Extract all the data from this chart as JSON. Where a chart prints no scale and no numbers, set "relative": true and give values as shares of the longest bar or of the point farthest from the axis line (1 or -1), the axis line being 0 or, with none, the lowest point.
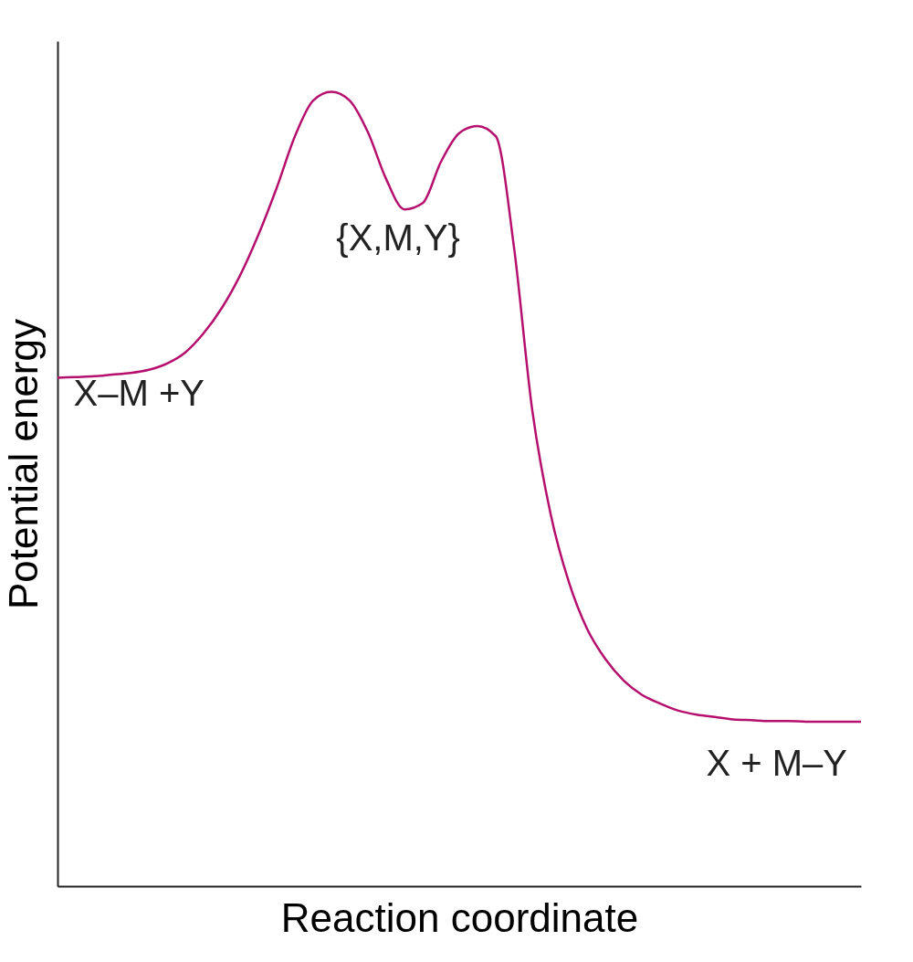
{
  "chart_data": {
    "type": "line",
    "relative": true,
    "xlabel": "Reaction coordinate",
    "ylabel": "Potential energy",
    "categories": [
      null,
      null,
      null,
      null,
      null,
      null,
      null,
      null,
      null,
      null,
      null,
      null,
      null,
      null,
      null,
      null,
      null,
      null,
      null,
      null,
      null,
      null,
      null,
      null,
      null,
      null,
      null,
      null,
      null,
      null,
      null,
      null,
      null,
      null,
      null,
      null,
      null,
      null,
      null,
      null,
      null,
      null,
      null,
      null,
      null
    ],
    "series": [
      {
        "color": "#b5106e",
        "values": [
          0.64,
          0.641,
          0.642,
          0.644,
          0.646,
          0.65,
          0.658,
          0.672,
          0.696,
          0.728,
          0.769,
          0.82,
          0.879,
          0.944,
          0.989,
          1.0,
          0.989,
          0.949,
          0.89,
          0.852,
          0.86,
          0.912,
          0.948,
          0.957,
          0.944,
          0.804,
          0.599,
          0.469,
          0.383,
          0.324,
          0.286,
          0.259,
          0.241,
          0.23,
          0.221,
          0.216,
          0.213,
          0.21,
          0.209,
          0.208,
          0.208,
          0.207,
          0.207,
          0.207,
          0.207
        ]
      }
    ],
    "annotations": [
      "{X,M,Y}",
      "X–M +Y",
      "X + M–Y"
    ]
  }
}
